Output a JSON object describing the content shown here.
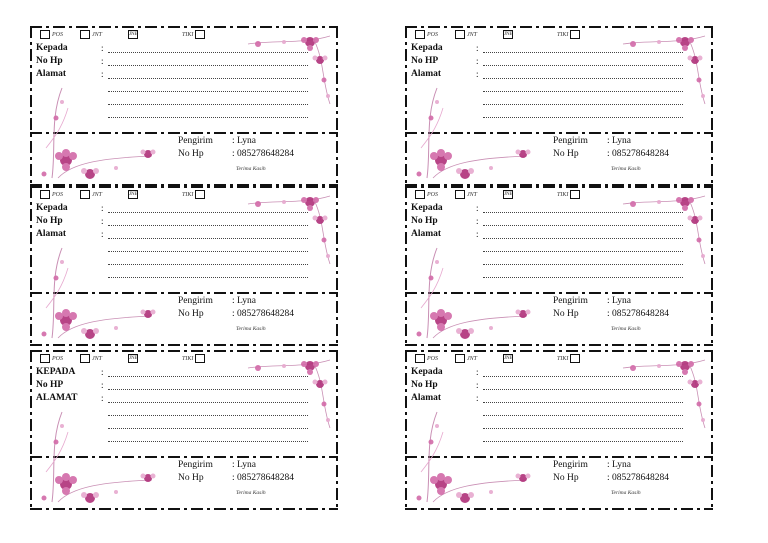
{
  "checkbox_labels": [
    "POS",
    "JNT",
    "JNE",
    "TIKI"
  ],
  "labels": [
    {
      "kepada": "Kepada",
      "nohp": "No Hp",
      "alamat": "Alamat",
      "pengirim_label": "Pengirim",
      "pengirim_value": ": Lyna",
      "sender_hp_label": "No Hp",
      "sender_hp_value": ": 085278648284",
      "thanks": "Terima Kasih"
    },
    {
      "kepada": "Kepada",
      "nohp": "No HP",
      "alamat": "Alamat",
      "pengirim_label": "Pengirim",
      "pengirim_value": ": Lyna",
      "sender_hp_label": "No Hp",
      "sender_hp_value": ": 085278648284",
      "thanks": "Terima Kasih"
    },
    {
      "kepada": "Kepada",
      "nohp": "No Hp",
      "alamat": "Alamat",
      "pengirim_label": "Pengirim",
      "pengirim_value": ": Lyna",
      "sender_hp_label": "No Hp",
      "sender_hp_value": ": 085278648284",
      "thanks": "Terima Kasih"
    },
    {
      "kepada": "Kepada",
      "nohp": "No Hp",
      "alamat": "Alamat",
      "pengirim_label": "Pengirim",
      "pengirim_value": ": Lyna",
      "sender_hp_label": "No Hp",
      "sender_hp_value": ": 085278648284",
      "thanks": "Terima Kasih"
    },
    {
      "kepada": "KEPADA",
      "nohp": "No HP",
      "alamat": "ALAMAT",
      "pengirim_label": "Pengirim",
      "pengirim_value": ": Lyna",
      "sender_hp_label": "No Hp",
      "sender_hp_value": ": 085278648284",
      "thanks": "Terima Kasih"
    },
    {
      "kepada": "Kepada",
      "nohp": "No Hp",
      "alamat": "Alamat",
      "pengirim_label": "Pengirim",
      "pengirim_value": ": Lyna",
      "sender_hp_label": "No Hp",
      "sender_hp_value": ": 085278648284",
      "thanks": "Terima Kasih"
    }
  ],
  "flower_colors": {
    "petal": "#b0307a",
    "light": "#e7a9cf",
    "stem": "#c98fb4"
  },
  "icons": {
    "decoration": "pink-flower-icon"
  }
}
